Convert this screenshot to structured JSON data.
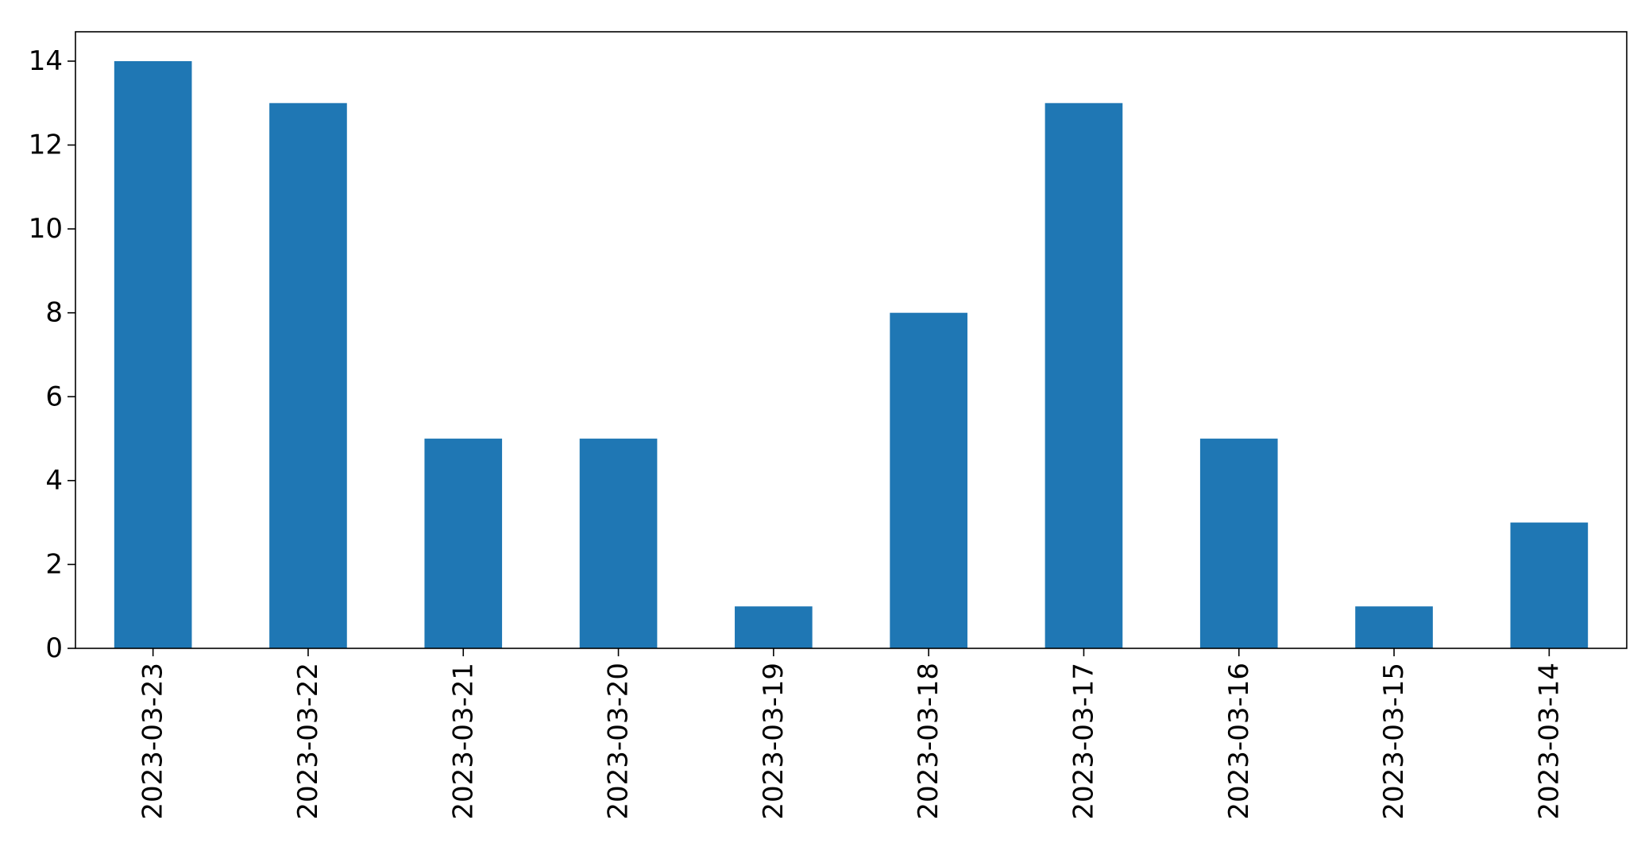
{
  "chart_data": {
    "type": "bar",
    "title": "",
    "xlabel": "",
    "ylabel": "",
    "categories": [
      "2023-03-23",
      "2023-03-22",
      "2023-03-21",
      "2023-03-20",
      "2023-03-19",
      "2023-03-18",
      "2023-03-17",
      "2023-03-16",
      "2023-03-15",
      "2023-03-14"
    ],
    "values": [
      14,
      13,
      5,
      5,
      1,
      8,
      13,
      5,
      1,
      3
    ],
    "ylim": [
      0,
      14.7
    ],
    "yticks": [
      0,
      2,
      4,
      6,
      8,
      10,
      12,
      14
    ],
    "grid": false,
    "legend": "none",
    "bar_color": "#1f77b4",
    "x_tick_rotation": "vertical"
  }
}
